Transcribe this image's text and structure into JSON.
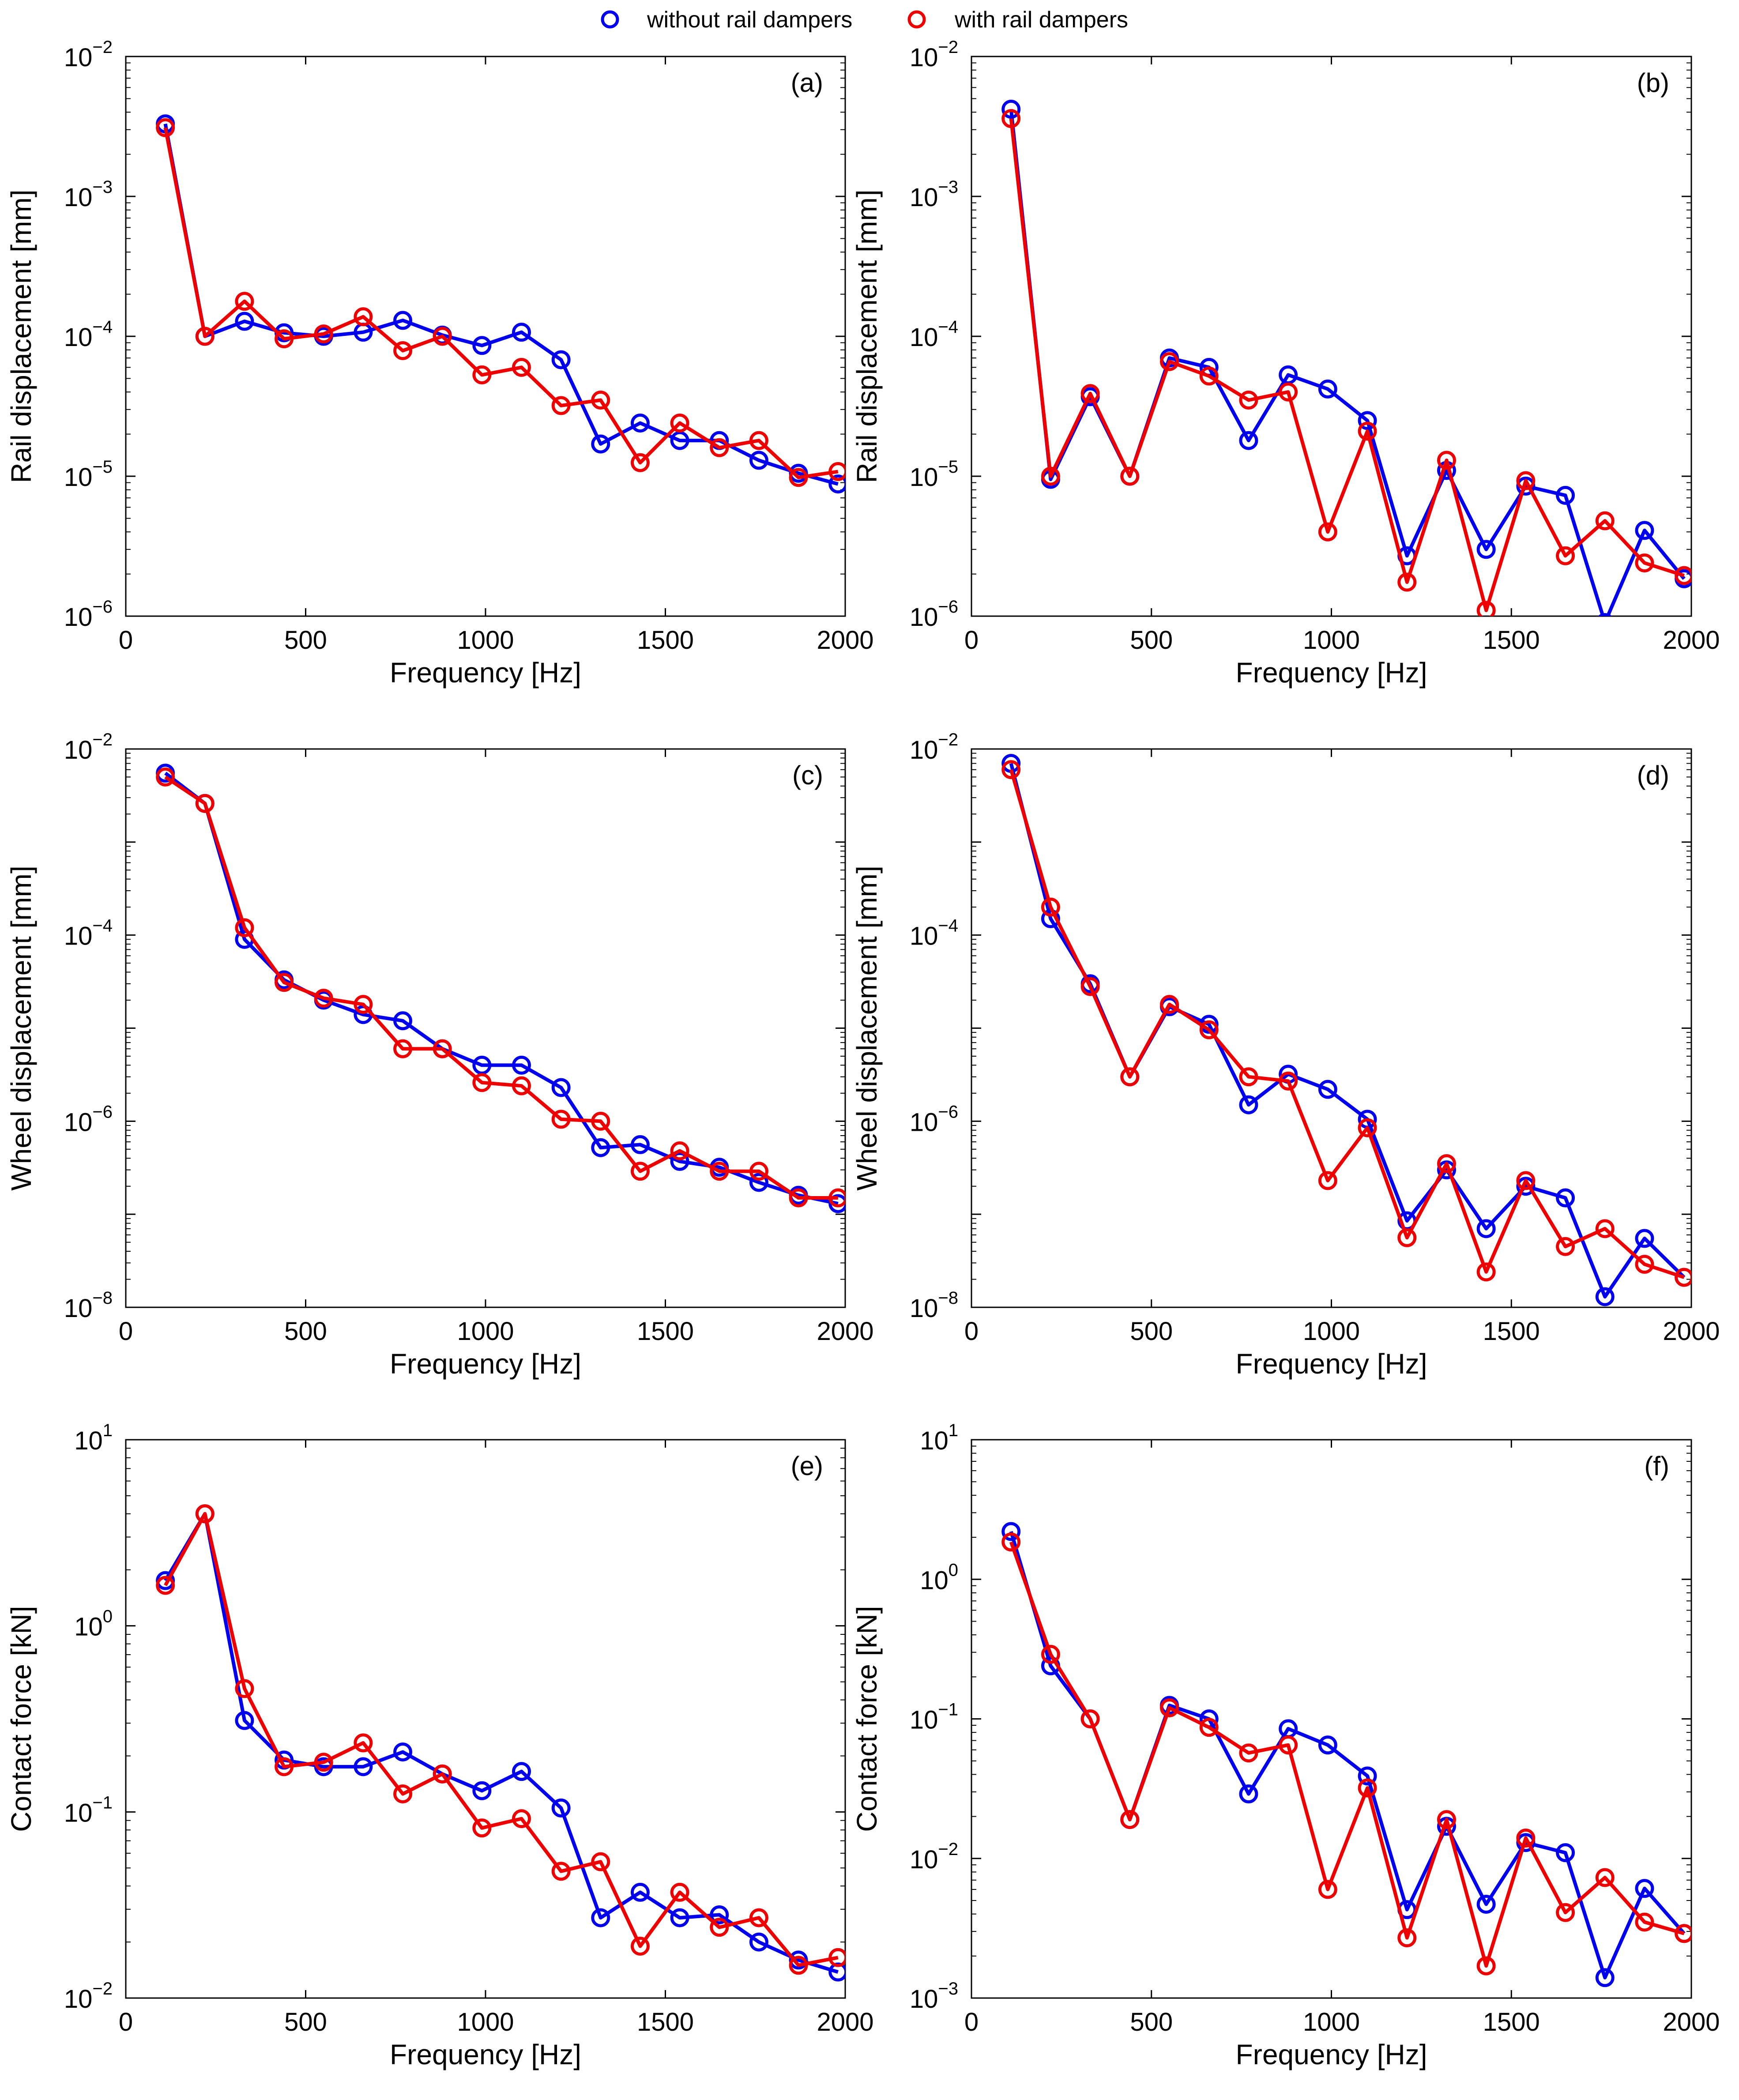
{
  "legend": {
    "items": [
      {
        "label": "without rail dampers",
        "color": "#0000ee"
      },
      {
        "label": "with rail dampers",
        "color": "#ee0000"
      }
    ]
  },
  "colors": {
    "blue": "#0000ee",
    "red": "#ee0000"
  },
  "chart_data": [
    {
      "type": "line",
      "label": "(a)",
      "xlabel": "Frequency [Hz]",
      "ylabel": "Rail displacement [mm]",
      "xlim": [
        0,
        2000
      ],
      "ylim_exp": [
        -6,
        -2
      ],
      "x_ticks": [
        0,
        500,
        1000,
        1500,
        2000
      ],
      "x": [
        110,
        220,
        330,
        440,
        550,
        660,
        770,
        880,
        990,
        1100,
        1210,
        1320,
        1430,
        1540,
        1650,
        1760,
        1870,
        1980
      ],
      "series": [
        {
          "name": "without rail dampers",
          "values": [
            0.0033,
            0.0001,
            0.000128,
            0.000106,
            0.0001,
            0.000107,
            0.00013,
            0.000102,
            8.6e-05,
            0.000107,
            6.8e-05,
            1.7e-05,
            2.4e-05,
            1.8e-05,
            1.8e-05,
            1.3e-05,
            1.05e-05,
            8.8e-06
          ]
        },
        {
          "name": "with rail dampers",
          "values": [
            0.0031,
            0.0001,
            0.000178,
            9.6e-05,
            0.000104,
            0.000138,
            7.9e-05,
            0.0001,
            5.3e-05,
            6e-05,
            3.2e-05,
            3.5e-05,
            1.25e-05,
            2.4e-05,
            1.6e-05,
            1.8e-05,
            9.8e-06,
            1.08e-05
          ]
        }
      ]
    },
    {
      "type": "line",
      "label": "(b)",
      "xlabel": "Frequency [Hz]",
      "ylabel": "Rail displacement [mm]",
      "xlim": [
        0,
        2000
      ],
      "ylim_exp": [
        -6,
        -2
      ],
      "x_ticks": [
        0,
        500,
        1000,
        1500,
        2000
      ],
      "x": [
        110,
        220,
        330,
        440,
        550,
        660,
        770,
        880,
        990,
        1100,
        1210,
        1320,
        1430,
        1540,
        1650,
        1760,
        1870,
        1980
      ],
      "series": [
        {
          "name": "without rail dampers",
          "values": [
            0.0042,
            9.5e-06,
            3.7e-05,
            1e-05,
            7e-05,
            6e-05,
            1.8e-05,
            5.3e-05,
            4.2e-05,
            2.5e-05,
            2.7e-06,
            1.1e-05,
            3e-06,
            8.5e-06,
            7.3e-06,
            9e-07,
            4.1e-06,
            1.85e-06
          ]
        },
        {
          "name": "with rail dampers",
          "values": [
            0.0036,
            1e-05,
            3.9e-05,
            1e-05,
            6.6e-05,
            5.2e-05,
            3.5e-05,
            4e-05,
            4e-06,
            2.1e-05,
            1.75e-06,
            1.3e-05,
            1.1e-06,
            9.3e-06,
            2.7e-06,
            4.8e-06,
            2.4e-06,
            1.95e-06
          ]
        }
      ]
    },
    {
      "type": "line",
      "label": "(c)",
      "xlabel": "Frequency [Hz]",
      "ylabel": "Wheel displacement [mm]",
      "xlim": [
        0,
        2000
      ],
      "ylim_exp": [
        -8,
        -2
      ],
      "y_ticks_exp": [
        -8,
        -6,
        -4,
        -2
      ],
      "x_ticks": [
        0,
        500,
        1000,
        1500,
        2000
      ],
      "x": [
        110,
        220,
        330,
        440,
        550,
        660,
        770,
        880,
        990,
        1100,
        1210,
        1320,
        1430,
        1540,
        1650,
        1760,
        1870,
        1980
      ],
      "series": [
        {
          "name": "without rail dampers",
          "values": [
            0.0055,
            0.0026,
            9e-05,
            3.3e-05,
            2e-05,
            1.4e-05,
            1.2e-05,
            6e-06,
            4e-06,
            4e-06,
            2.3e-06,
            5.2e-07,
            5.6e-07,
            3.7e-07,
            3.2e-07,
            2.2e-07,
            1.6e-07,
            1.3e-07
          ]
        },
        {
          "name": "with rail dampers",
          "values": [
            0.005,
            0.0026,
            0.00012,
            3.1e-05,
            2.1e-05,
            1.8e-05,
            6e-06,
            6e-06,
            2.6e-06,
            2.4e-06,
            1.05e-06,
            1e-06,
            2.9e-07,
            4.8e-07,
            2.9e-07,
            2.9e-07,
            1.5e-07,
            1.5e-07
          ]
        }
      ]
    },
    {
      "type": "line",
      "label": "(d)",
      "xlabel": "Frequency [Hz]",
      "ylabel": "Wheel displacement [mm]",
      "xlim": [
        0,
        2000
      ],
      "ylim_exp": [
        -8,
        -2
      ],
      "y_ticks_exp": [
        -8,
        -6,
        -4,
        -2
      ],
      "x_ticks": [
        0,
        500,
        1000,
        1500,
        2000
      ],
      "x": [
        110,
        220,
        330,
        440,
        550,
        660,
        770,
        880,
        990,
        1100,
        1210,
        1320,
        1430,
        1540,
        1650,
        1760,
        1870,
        1980
      ],
      "series": [
        {
          "name": "without rail dampers",
          "values": [
            0.007,
            0.00015,
            3e-05,
            3e-06,
            1.7e-05,
            1.1e-05,
            1.5e-06,
            3.2e-06,
            2.2e-06,
            1.05e-06,
            8.5e-08,
            3e-07,
            7e-08,
            2e-07,
            1.5e-07,
            1.3e-08,
            5.5e-08,
            2.1e-08
          ]
        },
        {
          "name": "with rail dampers",
          "values": [
            0.006,
            0.0002,
            2.8e-05,
            3e-06,
            1.8e-05,
            9.6e-06,
            3e-06,
            2.7e-06,
            2.3e-07,
            8.5e-07,
            5.6e-08,
            3.5e-07,
            2.4e-08,
            2.3e-07,
            4.5e-08,
            7e-08,
            2.9e-08,
            2.1e-08
          ]
        }
      ]
    },
    {
      "type": "line",
      "label": "(e)",
      "xlabel": "Frequency [Hz]",
      "ylabel": "Contact force [kN]",
      "xlim": [
        0,
        2000
      ],
      "ylim_exp": [
        -2,
        1
      ],
      "y_ticks_exp": [
        -2,
        -1,
        0,
        1
      ],
      "x_ticks": [
        0,
        500,
        1000,
        1500,
        2000
      ],
      "x": [
        110,
        220,
        330,
        440,
        550,
        660,
        770,
        880,
        990,
        1100,
        1210,
        1320,
        1430,
        1540,
        1650,
        1760,
        1870,
        1980
      ],
      "series": [
        {
          "name": "without rail dampers",
          "values": [
            1.75,
            4.0,
            0.31,
            0.19,
            0.175,
            0.175,
            0.21,
            0.16,
            0.13,
            0.165,
            0.105,
            0.027,
            0.037,
            0.027,
            0.028,
            0.02,
            0.016,
            0.0138
          ]
        },
        {
          "name": "with rail dampers",
          "values": [
            1.65,
            4.0,
            0.46,
            0.175,
            0.185,
            0.235,
            0.125,
            0.16,
            0.082,
            0.092,
            0.048,
            0.054,
            0.019,
            0.037,
            0.024,
            0.027,
            0.015,
            0.0165
          ]
        }
      ]
    },
    {
      "type": "line",
      "label": "(f)",
      "xlabel": "Frequency [Hz]",
      "ylabel": "Contact force [kN]",
      "xlim": [
        0,
        2000
      ],
      "ylim_exp": [
        -3,
        1
      ],
      "y_ticks_exp": [
        -3,
        -2,
        -1,
        0,
        1
      ],
      "x_ticks": [
        0,
        500,
        1000,
        1500,
        2000
      ],
      "x": [
        110,
        220,
        330,
        440,
        550,
        660,
        770,
        880,
        990,
        1100,
        1210,
        1320,
        1430,
        1540,
        1650,
        1760,
        1870,
        1980
      ],
      "series": [
        {
          "name": "without rail dampers",
          "values": [
            2.2,
            0.24,
            0.1,
            0.019,
            0.125,
            0.1,
            0.029,
            0.085,
            0.065,
            0.039,
            0.0043,
            0.017,
            0.0047,
            0.013,
            0.011,
            0.0014,
            0.0061,
            0.0029
          ]
        },
        {
          "name": "with rail dampers",
          "values": [
            1.85,
            0.29,
            0.1,
            0.019,
            0.12,
            0.087,
            0.057,
            0.065,
            0.006,
            0.032,
            0.0027,
            0.019,
            0.0017,
            0.014,
            0.0041,
            0.0073,
            0.0035,
            0.0029
          ]
        }
      ]
    }
  ]
}
